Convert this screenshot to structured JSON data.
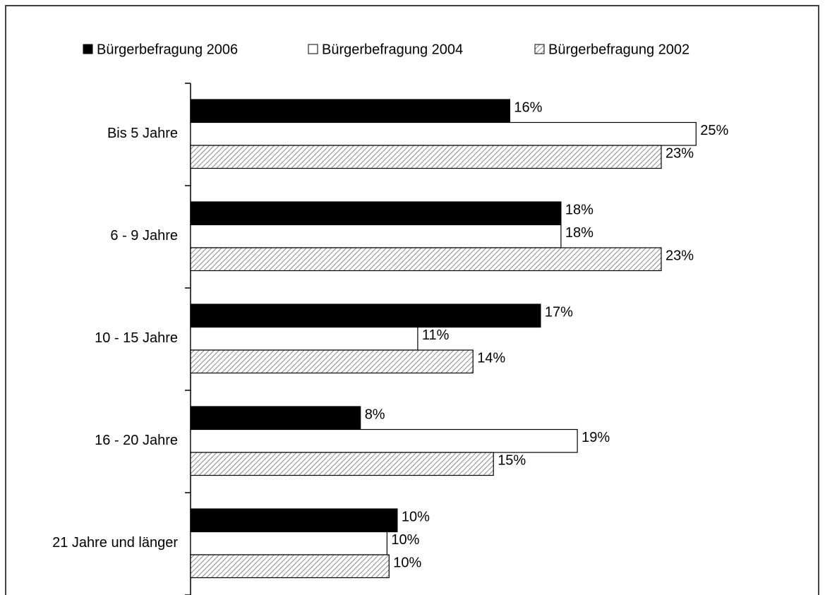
{
  "chart_data": {
    "type": "hbar",
    "categories": [
      "Bis 5 Jahre",
      "6 - 9 Jahre",
      "10 - 15 Jahre",
      "16 - 20 Jahre",
      "21 Jahre und länger"
    ],
    "series": [
      {
        "name": "Bürgerbefragung 2006",
        "color": "#000000",
        "values": [
          15.6,
          18.1,
          17.1,
          8.3,
          10.1
        ],
        "value_labels": [
          "16%",
          "18%",
          "17%",
          "8%",
          "10%"
        ]
      },
      {
        "name": "Bürgerbefragung 2004",
        "color": "#ffffff",
        "values": [
          24.7,
          18.1,
          11.1,
          18.9,
          9.6
        ],
        "value_labels": [
          "25%",
          "18%",
          "11%",
          "19%",
          "10%"
        ]
      },
      {
        "name": "Bürgerbefragung 2002",
        "color": "#c8c8c8",
        "pattern": "diagonal",
        "values": [
          23.0,
          23.0,
          13.8,
          14.8,
          9.7
        ],
        "value_labels": [
          "23%",
          "23%",
          "14%",
          "15%",
          "10%"
        ]
      }
    ],
    "xlim": [
      0,
      30
    ],
    "legend": "top"
  }
}
